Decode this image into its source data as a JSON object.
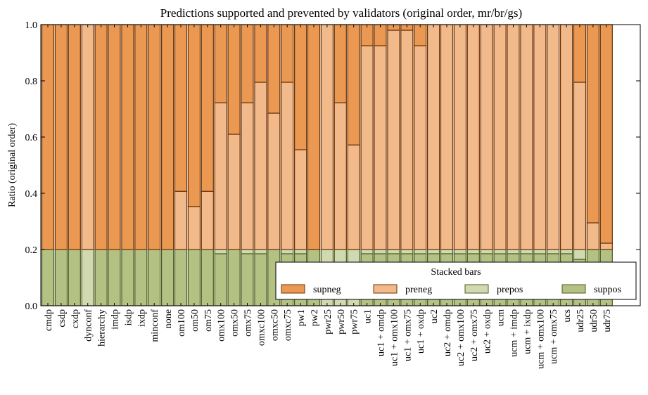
{
  "chart_data": {
    "type": "bar",
    "stacked": true,
    "title": "Predictions supported and prevented by validators (original order, mr/br/gs)",
    "xlabel": "",
    "ylabel": "Ratio (original order)",
    "ylim": [
      0,
      1.0
    ],
    "yticks": [
      "0.0",
      "0.2",
      "0.4",
      "0.6",
      "0.8",
      "1.0"
    ],
    "grid": false,
    "legend": {
      "title": "Stacked bars",
      "placement": "lower-right"
    },
    "colors": {
      "supneg": "#EB9852",
      "preneg": "#F2B98B",
      "prepos": "#D0D9B0",
      "suppos": "#B3C282"
    },
    "categories": [
      "cmdp",
      "csdp",
      "cxdp",
      "dynconf",
      "hierarchy",
      "imdp",
      "isdp",
      "ixdp",
      "minconf",
      "none",
      "om100",
      "om50",
      "om75",
      "omx100",
      "omx50",
      "omx75",
      "omxc100",
      "omxc50",
      "omxc75",
      "pw1",
      "pw2",
      "pwr25",
      "pwr50",
      "pwr75",
      "uc1",
      "uc1 + omdp",
      "uc1 + omx100",
      "uc1 + omx75",
      "uc1 + oxdp",
      "uc2",
      "uc2 + omdp",
      "uc2 + omx100",
      "uc2 + omx75",
      "uc2 + oxdp",
      "ucm",
      "ucm + imdp",
      "ucm + ixdp",
      "ucm + omx100",
      "ucm + omx75",
      "ucs",
      "udr25",
      "udr50",
      "udr75"
    ],
    "series": [
      {
        "name": "suppos",
        "values": [
          0.2,
          0.2,
          0.2,
          0,
          0.2,
          0.2,
          0.2,
          0.2,
          0.2,
          0.2,
          0.2,
          0.2,
          0.2,
          0.185,
          0.2,
          0.185,
          0.185,
          0.2,
          0.185,
          0.185,
          0.2,
          0,
          0,
          0,
          0.185,
          0.185,
          0.185,
          0.185,
          0.185,
          0.185,
          0.185,
          0.185,
          0.185,
          0.185,
          0.185,
          0.185,
          0.185,
          0.185,
          0.185,
          0.185,
          0.165,
          0.2,
          0.2
        ]
      },
      {
        "name": "prepos",
        "values": [
          0,
          0,
          0,
          0.2,
          0,
          0,
          0,
          0,
          0,
          0,
          0,
          0,
          0,
          0.015,
          0,
          0.015,
          0.015,
          0,
          0.015,
          0.015,
          0,
          0.2,
          0.2,
          0.2,
          0.015,
          0.015,
          0.015,
          0.015,
          0.015,
          0.015,
          0.015,
          0.015,
          0.015,
          0.015,
          0.015,
          0.015,
          0.015,
          0.015,
          0.015,
          0.015,
          0.035,
          0,
          0
        ]
      },
      {
        "name": "preneg",
        "values": [
          0,
          0,
          0,
          0.8,
          0,
          0,
          0,
          0,
          0,
          0,
          0.207,
          0.153,
          0.207,
          0.522,
          0.41,
          0.522,
          0.595,
          0.485,
          0.595,
          0.355,
          0,
          0.8,
          0.522,
          0.372,
          0.725,
          0.725,
          0.78,
          0.78,
          0.725,
          0.8,
          0.8,
          0.8,
          0.8,
          0.8,
          0.8,
          0.8,
          0.8,
          0.8,
          0.8,
          0.8,
          0.595,
          0.095,
          0.0225
        ]
      },
      {
        "name": "supneg",
        "values": [
          0.8,
          0.8,
          0.8,
          0,
          0.8,
          0.8,
          0.8,
          0.8,
          0.8,
          0.8,
          0.593,
          0.647,
          0.593,
          0.278,
          0.39,
          0.278,
          0.205,
          0.315,
          0.205,
          0.445,
          0.8,
          0,
          0.278,
          0.428,
          0.075,
          0.075,
          0.02,
          0.02,
          0.075,
          0,
          0,
          0,
          0,
          0,
          0,
          0,
          0,
          0,
          0,
          0,
          0.205,
          0.705,
          0.7775
        ]
      }
    ]
  }
}
